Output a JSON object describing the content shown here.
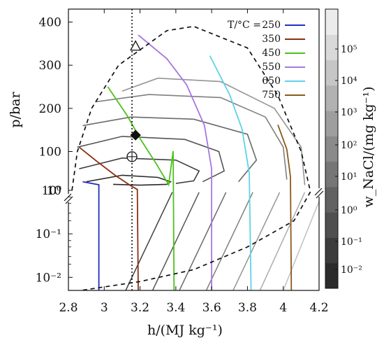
{
  "chart_data": {
    "type": "line",
    "xlabel": "h/(MJ kg⁻¹)",
    "ylabel": "p/bar",
    "x_ticks": [
      "2.8",
      "3",
      "3.2",
      "3.4",
      "3.6",
      "3.8",
      "4",
      "4.2"
    ],
    "xlim": [
      2.8,
      4.2
    ],
    "upper_y_ticks": [
      "10",
      "100",
      "200",
      "300",
      "400"
    ],
    "upper_ylim": [
      10,
      430
    ],
    "lower_y_ticks": [
      "10⁻²",
      "10⁻¹",
      "10⁰"
    ],
    "lower_y_scale": "log",
    "lower_ylim": [
      0.005,
      1
    ],
    "legend_title": "T/°C =",
    "legend_placement": "top-right",
    "colorbar_label": "w_NaCl/(mg kg⁻¹)",
    "colorbar_scale": "log",
    "colorbar_ticks": [
      "10⁻²",
      "10⁻¹",
      "10⁰",
      "10¹",
      "10²",
      "10³",
      "10⁴",
      "10⁵"
    ],
    "colorbar_colors": [
      "#2b2b2b",
      "#3c3c3c",
      "#4f4f4f",
      "#626262",
      "#767676",
      "#8a8a8a",
      "#9e9e9e",
      "#b2b2b2",
      "#c6c6c6",
      "#d9d9d9",
      "#ececec"
    ],
    "isotherms": [
      {
        "name": "250",
        "color": "#1f2fbf",
        "points": [
          [
            2.88,
            30
          ],
          [
            2.97,
            23
          ],
          [
            2.97,
            0.005
          ]
        ]
      },
      {
        "name": "350",
        "color": "#8b2f10",
        "points": [
          [
            2.86,
            110
          ],
          [
            2.95,
            80
          ],
          [
            3.06,
            45
          ],
          [
            3.14,
            23
          ],
          [
            3.185,
            12
          ],
          [
            3.19,
            0.005
          ]
        ]
      },
      {
        "name": "450",
        "color": "#4cc21a",
        "points": [
          [
            3.02,
            250
          ],
          [
            3.13,
            182
          ],
          [
            3.2,
            130
          ],
          [
            3.29,
            72
          ],
          [
            3.36,
            23
          ],
          [
            3.385,
            8
          ],
          [
            3.39,
            0.005
          ]
        ]
      },
      {
        "name": "550",
        "color": "#a677e0",
        "points": [
          [
            3.19,
            370
          ],
          [
            3.35,
            315
          ],
          [
            3.46,
            255
          ],
          [
            3.56,
            160
          ],
          [
            3.6,
            60
          ],
          [
            3.6,
            0.005
          ]
        ]
      },
      {
        "name": "650",
        "color": "#5ed2e8",
        "points": [
          [
            3.59,
            322
          ],
          [
            3.7,
            232
          ],
          [
            3.77,
            152
          ],
          [
            3.81,
            50
          ],
          [
            3.82,
            0.005
          ]
        ]
      },
      {
        "name": "750",
        "color": "#8a5a1a",
        "points": [
          [
            3.97,
            162
          ],
          [
            4.02,
            105
          ],
          [
            4.04,
            42
          ],
          [
            4.045,
            0.005
          ]
        ]
      }
    ],
    "two_phase_boundary": [
      [
        2.82,
        10
      ],
      [
        2.85,
        100
      ],
      [
        2.93,
        200
      ],
      [
        3.08,
        300
      ],
      [
        3.35,
        380
      ],
      [
        3.5,
        390
      ],
      [
        3.8,
        340
      ],
      [
        3.97,
        230
      ],
      [
        4.1,
        100
      ],
      [
        4.15,
        10
      ],
      [
        4.15,
        0.9
      ],
      [
        4.06,
        0.2
      ],
      [
        3.8,
        0.05
      ],
      [
        3.5,
        0.015
      ],
      [
        3.2,
        0.008
      ],
      [
        2.87,
        0.005
      ]
    ],
    "markers": [
      {
        "shape": "triangle",
        "x": 3.175,
        "y": 343
      },
      {
        "shape": "diamond",
        "x": 3.175,
        "y": 138
      },
      {
        "shape": "circle-cross",
        "x": 3.155,
        "y": 88
      }
    ],
    "reference_h": 3.155
  }
}
